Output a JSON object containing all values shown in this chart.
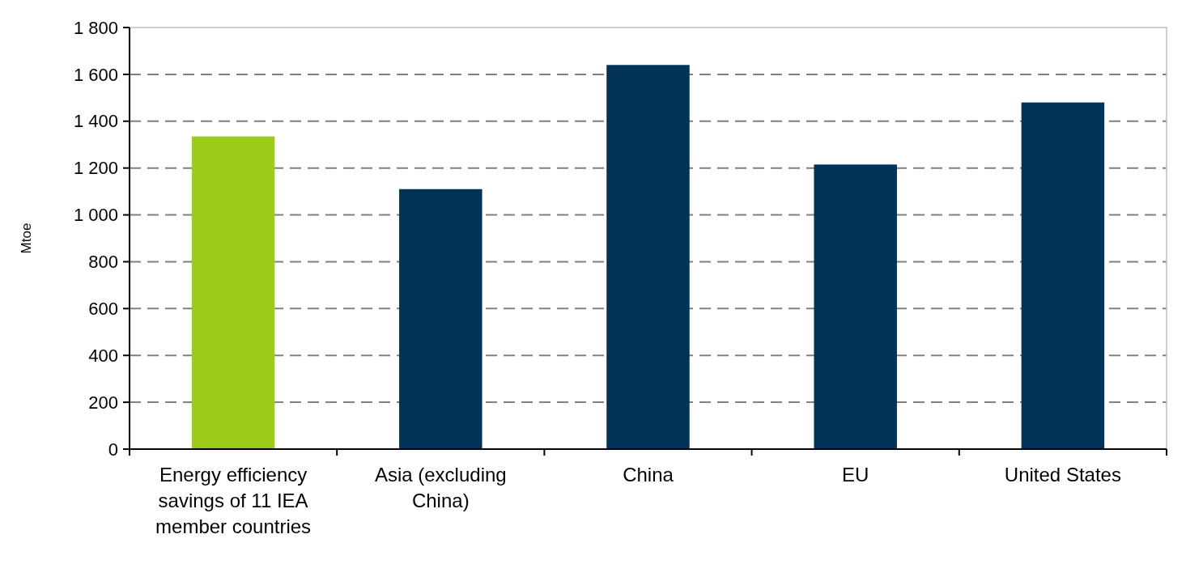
{
  "chart_data": {
    "type": "bar",
    "ylabel": "Mtoe",
    "categories": [
      "Energy efficiency savings of 11 IEA member countries",
      "Asia (excluding China)",
      "China",
      "EU",
      "United States"
    ],
    "values": [
      1335,
      1110,
      1640,
      1215,
      1480
    ],
    "colors": [
      "#9dcb1a",
      "#003357",
      "#003357",
      "#003357",
      "#003357"
    ],
    "ylim": [
      0,
      1800
    ],
    "yticks": [
      0,
      200,
      400,
      600,
      800,
      {
        "value": 1000,
        "label": "1 000"
      },
      {
        "value": 1200,
        "label": "1 200"
      },
      {
        "value": 1400,
        "label": "1 400"
      },
      {
        "value": 1600,
        "label": "1 600"
      },
      {
        "value": 1800,
        "label": "1 800"
      }
    ],
    "grid": "y"
  }
}
